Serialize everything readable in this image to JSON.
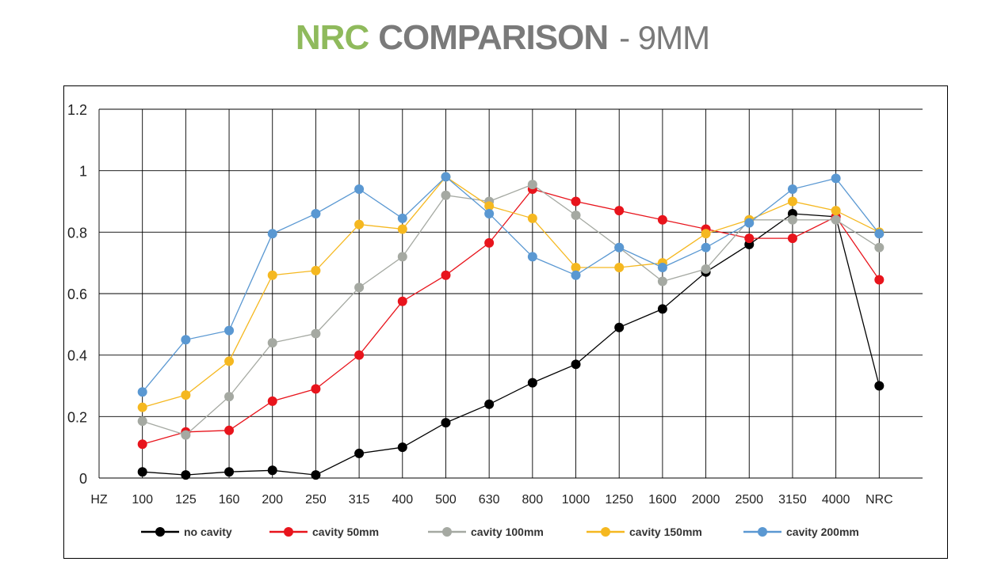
{
  "title": {
    "part1": "NRC",
    "part2": "COMPARISON",
    "part3": "- 9MM",
    "color_part1": "#8fba5c",
    "color_part2": "#7a7a7a"
  },
  "chart_data": {
    "type": "line",
    "title": "NRC COMPARISON - 9MM",
    "xlabel": "",
    "ylabel": "",
    "x_axis_first_label": "HZ",
    "categories": [
      "100",
      "125",
      "160",
      "200",
      "250",
      "315",
      "400",
      "500",
      "630",
      "800",
      "1000",
      "1250",
      "1600",
      "2000",
      "2500",
      "3150",
      "4000",
      "NRC"
    ],
    "y_ticks": [
      "0",
      "0.2",
      "0.4",
      "0.6",
      "0.8",
      "1",
      "1.2"
    ],
    "ylim": [
      0,
      1.2
    ],
    "grid": true,
    "legend_position": "bottom",
    "series": [
      {
        "name": "no cavity",
        "color": "#000000",
        "values": [
          0.02,
          0.01,
          0.02,
          0.025,
          0.01,
          0.08,
          0.1,
          0.18,
          0.24,
          0.31,
          0.37,
          0.49,
          0.55,
          0.67,
          0.76,
          0.86,
          0.85,
          0.3
        ]
      },
      {
        "name": "cavity 50mm",
        "color": "#e8141c",
        "values": [
          0.11,
          0.15,
          0.155,
          0.25,
          0.29,
          0.4,
          0.575,
          0.66,
          0.765,
          0.94,
          0.9,
          0.87,
          0.84,
          0.81,
          0.78,
          0.78,
          0.85,
          0.645
        ]
      },
      {
        "name": "cavity 100mm",
        "color": "#a5a9a2",
        "values": [
          0.185,
          0.14,
          0.265,
          0.44,
          0.47,
          0.62,
          0.72,
          0.92,
          0.9,
          0.955,
          0.855,
          0.75,
          0.64,
          0.68,
          0.84,
          0.84,
          0.84,
          0.75
        ]
      },
      {
        "name": "cavity 150mm",
        "color": "#f5b820",
        "values": [
          0.23,
          0.27,
          0.38,
          0.66,
          0.675,
          0.825,
          0.81,
          0.98,
          0.885,
          0.845,
          0.685,
          0.685,
          0.7,
          0.795,
          0.84,
          0.9,
          0.87,
          0.8
        ]
      },
      {
        "name": "cavity 200mm",
        "color": "#5a98d2",
        "values": [
          0.28,
          0.45,
          0.48,
          0.795,
          0.86,
          0.94,
          0.845,
          0.98,
          0.86,
          0.72,
          0.66,
          0.75,
          0.685,
          0.75,
          0.83,
          0.94,
          0.975,
          0.795
        ]
      }
    ]
  }
}
